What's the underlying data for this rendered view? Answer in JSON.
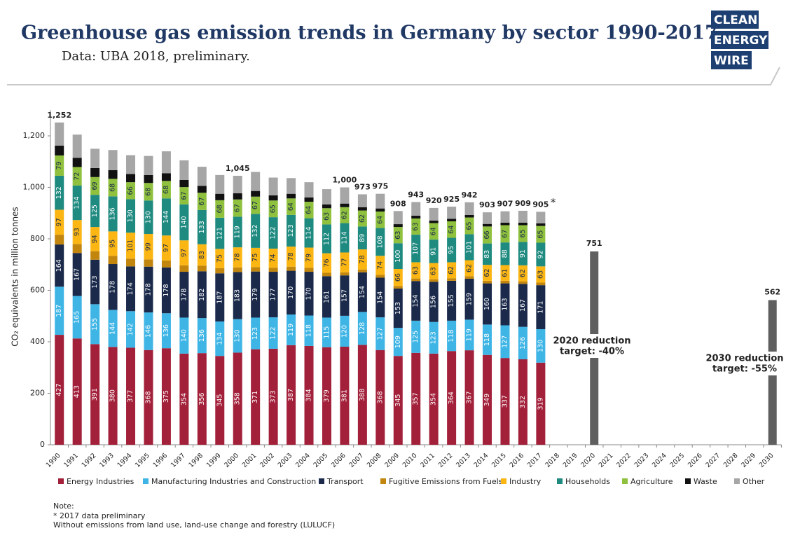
{
  "logo": [
    "CLEAN",
    "ENERGY",
    "WIRE"
  ],
  "chart_data": {
    "type": "stacked-bar",
    "title": "Greenhouse gas emission trends in Germany by sector 1990-2017.",
    "subtitle": "Data: UBA 2018, preliminary.",
    "y_label": "CO₂ equivalents in million tonnes",
    "categories": [
      "1990",
      "1991",
      "1992",
      "1993",
      "1994",
      "1995",
      "1996",
      "1997",
      "1998",
      "1999",
      "2000",
      "2001",
      "2002",
      "2003",
      "2004",
      "2005",
      "2006",
      "2007",
      "2008",
      "2009",
      "2010",
      "2011",
      "2012",
      "2013",
      "2014",
      "2015",
      "2016",
      "2017",
      "2018",
      "2019",
      "2020",
      "2021",
      "2022",
      "2023",
      "2024",
      "2025",
      "2026",
      "2027",
      "2028",
      "2029",
      "2030"
    ],
    "ylim": [
      0,
      1300
    ],
    "yticks": [
      0,
      200,
      400,
      600,
      800,
      {
        "value": 1000,
        "label": "1,000"
      },
      {
        "value": 1200,
        "label": "1,200"
      }
    ],
    "series": [
      {
        "name": "Energy Industries",
        "color": "#a3203a",
        "labeled": true,
        "label_color": "#ffffff",
        "values": [
          427,
          413,
          391,
          380,
          377,
          368,
          375,
          354,
          356,
          345,
          358,
          371,
          373,
          387,
          384,
          379,
          381,
          388,
          368,
          345,
          357,
          354,
          364,
          367,
          349,
          337,
          332,
          319,
          null,
          null,
          null,
          null,
          null,
          null,
          null,
          null,
          null,
          null,
          null,
          null,
          null
        ]
      },
      {
        "name": "Manufacturing Industries and Construction",
        "color": "#3fb5e6",
        "labeled": true,
        "label_color": "#ffffff",
        "values": [
          187,
          165,
          155,
          144,
          142,
          146,
          136,
          140,
          136,
          134,
          130,
          123,
          122,
          119,
          118,
          115,
          120,
          128,
          127,
          109,
          125,
          123,
          118,
          119,
          118,
          127,
          126,
          130,
          null,
          null,
          null,
          null,
          null,
          null,
          null,
          null,
          null,
          null,
          null,
          null,
          null
        ]
      },
      {
        "name": "Transport",
        "color": "#1b2a4a",
        "labeled": true,
        "label_color": "#ffffff",
        "values": [
          164,
          167,
          173,
          178,
          174,
          178,
          178,
          178,
          182,
          187,
          183,
          179,
          177,
          170,
          170,
          161,
          157,
          154,
          154,
          153,
          154,
          156,
          155,
          159,
          160,
          163,
          167,
          171,
          null,
          null,
          null,
          null,
          null,
          null,
          null,
          null,
          null,
          null,
          null,
          null,
          null
        ]
      },
      {
        "name": "Fugitive Emissions from Fuels",
        "color": "#c2860e",
        "labeled": false,
        "values": [
          38,
          35,
          33,
          32,
          30,
          28,
          27,
          25,
          22,
          20,
          18,
          17,
          16,
          16,
          15,
          13,
          12,
          11,
          11,
          10,
          10,
          10,
          10,
          10,
          10,
          10,
          10,
          10,
          null,
          null,
          null,
          null,
          null,
          null,
          null,
          null,
          null,
          null,
          null,
          null,
          null
        ]
      },
      {
        "name": "Industry",
        "color": "#fbb614",
        "labeled": true,
        "label_color": "#1b2a4a",
        "values": [
          97,
          93,
          94,
          95,
          101,
          99,
          97,
          97,
          83,
          75,
          78,
          75,
          74,
          78,
          79,
          76,
          77,
          78,
          74,
          66,
          63,
          63,
          62,
          62,
          62,
          61,
          62,
          63,
          null,
          null,
          null,
          null,
          null,
          null,
          null,
          null,
          null,
          null,
          null,
          null,
          null
        ]
      },
      {
        "name": "Households",
        "color": "#1f8a80",
        "labeled": true,
        "label_color": "#ffffff",
        "values": [
          132,
          134,
          125,
          136,
          130,
          130,
          144,
          140,
          133,
          121,
          119,
          132,
          122,
          123,
          114,
          112,
          114,
          89,
          108,
          100,
          107,
          91,
          95,
          101,
          83,
          88,
          91,
          92,
          null,
          null,
          null,
          null,
          null,
          null,
          null,
          null,
          null,
          null,
          null,
          null,
          null
        ]
      },
      {
        "name": "Agriculture",
        "color": "#8fc13e",
        "labeled": true,
        "label_color": "#1b2a4a",
        "values": [
          79,
          72,
          69,
          68,
          66,
          68,
          68,
          67,
          67,
          68,
          67,
          67,
          65,
          64,
          64,
          63,
          62,
          62,
          64,
          63,
          63,
          64,
          64,
          65,
          66,
          67,
          65,
          65,
          null,
          null,
          null,
          null,
          null,
          null,
          null,
          null,
          null,
          null,
          null,
          null,
          null
        ]
      },
      {
        "name": "Waste",
        "color": "#111111",
        "labeled": false,
        "values": [
          38,
          36,
          35,
          34,
          32,
          31,
          30,
          28,
          27,
          25,
          24,
          22,
          20,
          18,
          17,
          15,
          14,
          13,
          12,
          11,
          11,
          10,
          10,
          10,
          10,
          10,
          10,
          10,
          null,
          null,
          null,
          null,
          null,
          null,
          null,
          null,
          null,
          null,
          null,
          null,
          null
        ]
      },
      {
        "name": "Other",
        "color": "#a6a6a6",
        "labeled": false,
        "values": [
          90,
          90,
          75,
          78,
          73,
          74,
          85,
          76,
          74,
          73,
          68,
          74,
          69,
          61,
          59,
          59,
          63,
          50,
          57,
          51,
          53,
          49,
          47,
          49,
          45,
          44,
          46,
          45,
          null,
          null,
          null,
          null,
          null,
          null,
          null,
          null,
          null,
          null,
          null,
          null,
          null
        ]
      }
    ],
    "targets": {
      "color": "#5f5f5f",
      "values": [
        null,
        null,
        null,
        null,
        null,
        null,
        null,
        null,
        null,
        null,
        null,
        null,
        null,
        null,
        null,
        null,
        null,
        null,
        null,
        null,
        null,
        null,
        null,
        null,
        null,
        null,
        null,
        null,
        null,
        null,
        751,
        null,
        null,
        null,
        null,
        null,
        null,
        null,
        null,
        null,
        562
      ]
    },
    "totals": {
      "values": [
        1252,
        null,
        null,
        null,
        null,
        null,
        null,
        null,
        null,
        null,
        1045,
        null,
        null,
        null,
        null,
        null,
        1000,
        973,
        975,
        908,
        943,
        920,
        925,
        942,
        903,
        907,
        909,
        905,
        null,
        null,
        null,
        null,
        null,
        null,
        null,
        null,
        null,
        null,
        null,
        null,
        null
      ],
      "value_labels": [
        "1,252",
        null,
        null,
        null,
        null,
        null,
        null,
        null,
        null,
        null,
        "1,045",
        null,
        null,
        null,
        null,
        null,
        "1,000",
        null,
        null,
        null,
        null,
        null,
        null,
        null,
        null,
        null,
        null,
        null,
        null,
        null,
        null,
        null,
        null,
        null,
        null,
        null,
        null,
        null,
        null,
        null,
        null
      ]
    },
    "asterisk": "*",
    "annotations": [
      [
        "2020 reduction",
        "target: -40%"
      ],
      [
        "2030 reduction",
        "target: -55%"
      ]
    ],
    "notes": [
      "Note:",
      "* 2017 data preliminary",
      "Without emissions from land use, land-use change and forestry (LULUCF)"
    ]
  }
}
